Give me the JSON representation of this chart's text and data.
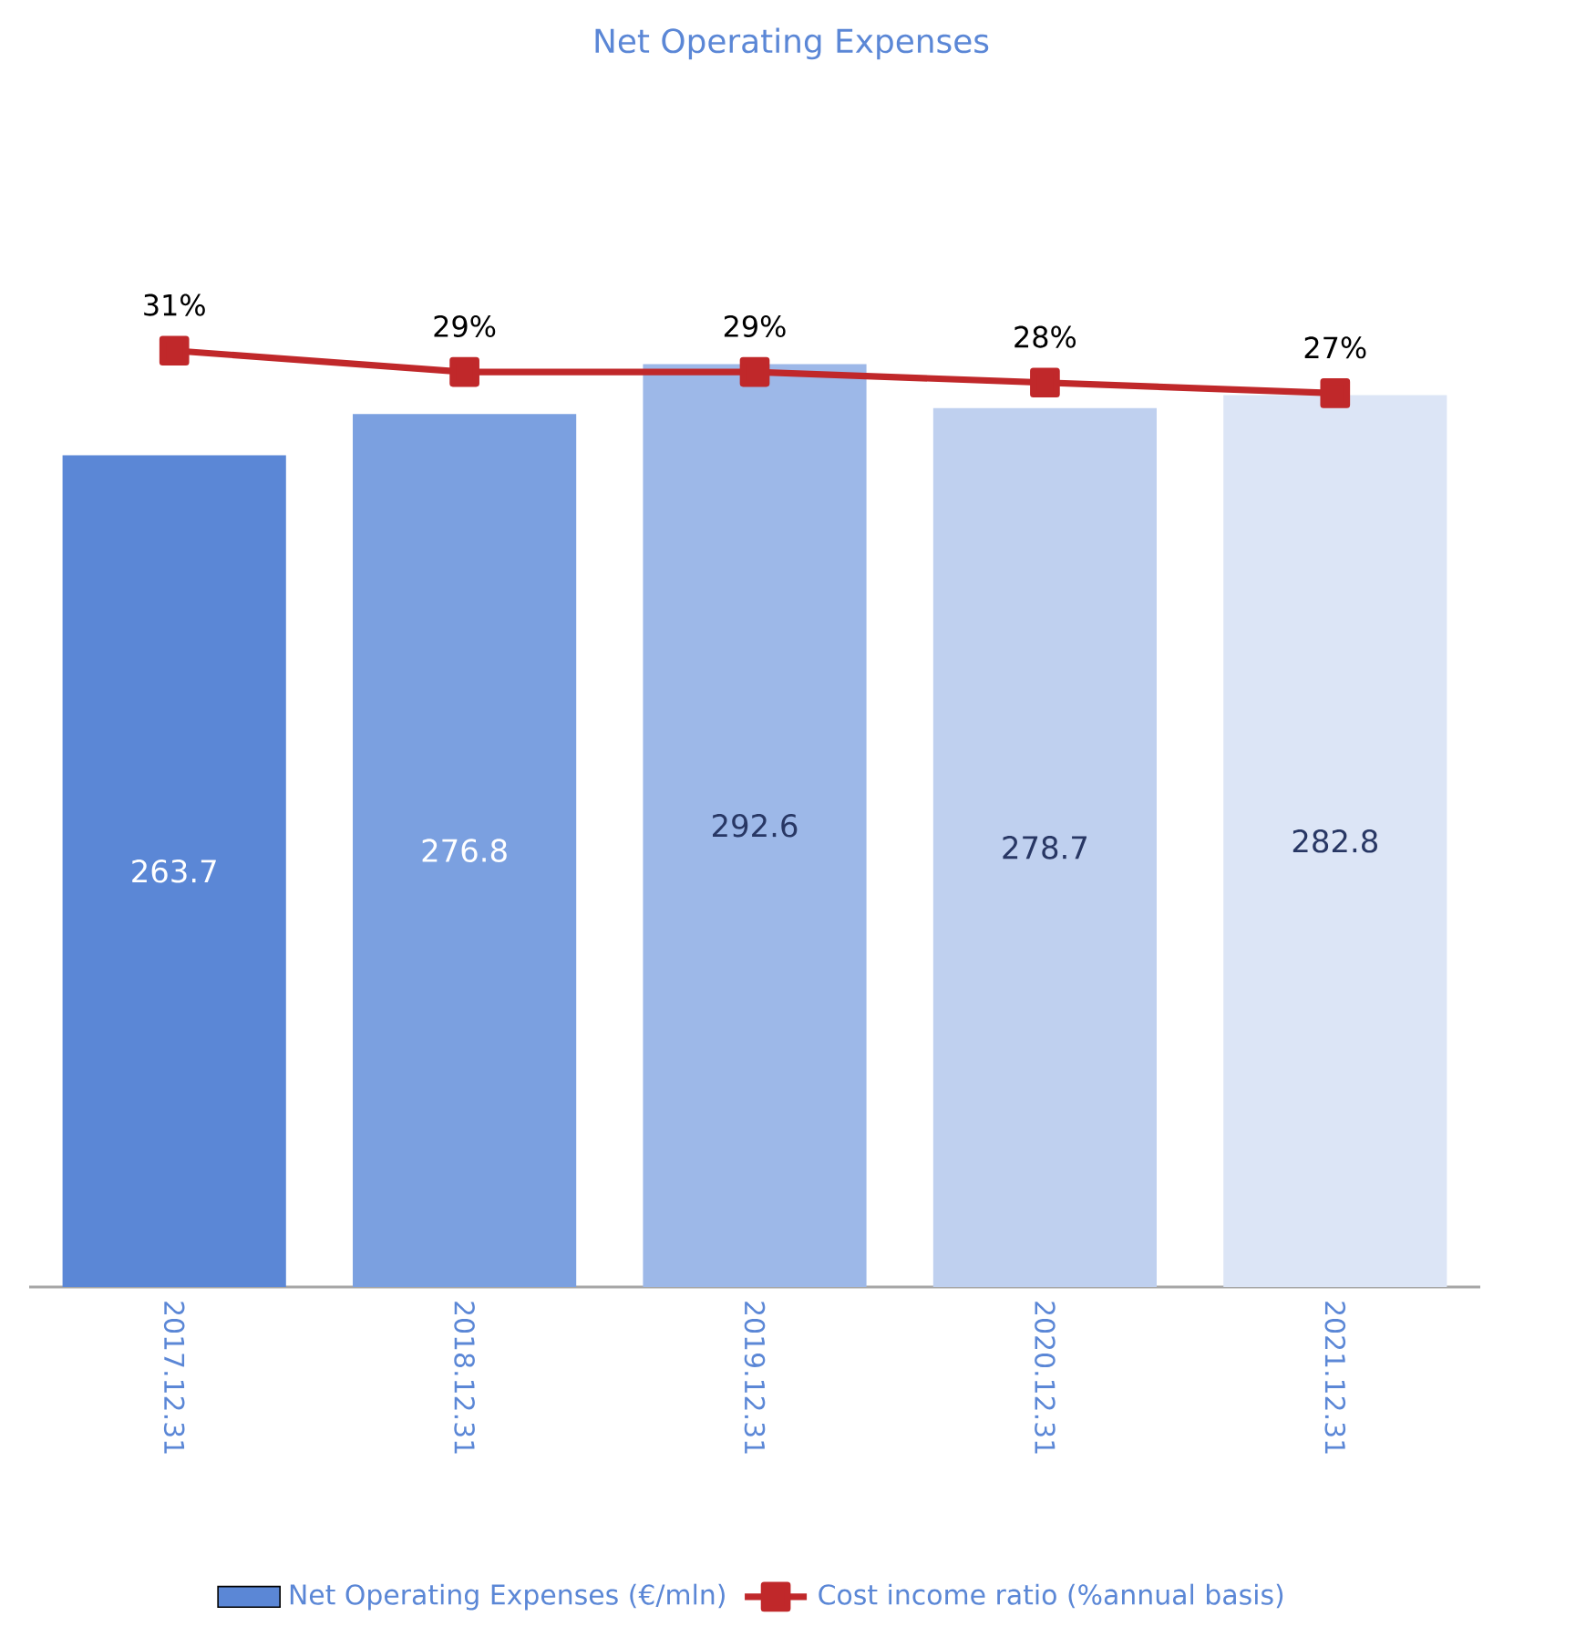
{
  "chart_data": {
    "type": "bar",
    "title": "Net Operating Expenses",
    "categories": [
      "2017.12.31",
      "2018.12.31",
      "2019.12.31",
      "2020.12.31",
      "2021.12.31"
    ],
    "series": [
      {
        "name": "Net Operating Expenses (€/mln)",
        "colors": [
          "#5b87d6",
          "#7ba0e0",
          "#9db8e8",
          "#bfd0ef",
          "#dce5f6"
        ],
        "values": [
          263.7,
          276.8,
          292.6,
          278.7,
          282.8
        ]
      },
      {
        "name": "Cost income ratio (%annual basis)",
        "type": "line",
        "axis": "y2",
        "color": "#c0282a",
        "marker": "square",
        "line_style": "solid",
        "values": [
          31,
          29,
          29,
          28,
          27
        ],
        "value_labels": [
          "31%",
          "29%",
          "29%",
          "28%",
          "27%"
        ]
      }
    ],
    "data_labels": true,
    "tick_labels": "x",
    "legend": "bottom"
  }
}
